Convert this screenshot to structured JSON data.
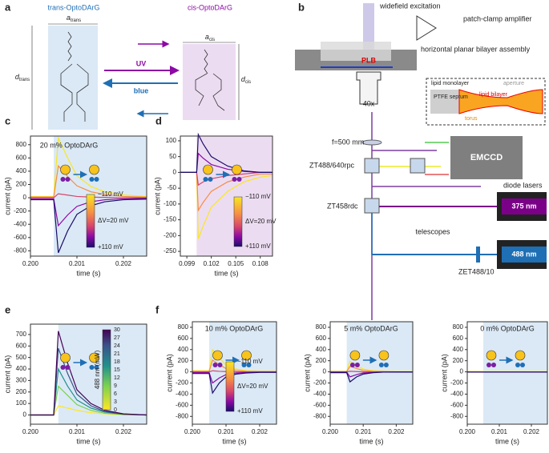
{
  "panel_a": {
    "label": "a",
    "trans_title": "trans-OptoDArG",
    "cis_title": "cis-OptoDArG",
    "a_trans": {
      "symbol": "a",
      "sub": "trans"
    },
    "a_cis": {
      "symbol": "a",
      "sub": "cis"
    },
    "d_trans": {
      "symbol": "d",
      "sub": "trans"
    },
    "d_cis": {
      "symbol": "d",
      "sub": "cis"
    },
    "uv": "UV",
    "blue": "blue"
  },
  "panel_b": {
    "label": "b",
    "widefield": "widefield excitation",
    "amplifier": "patch-clamp amplifier",
    "assembly": "horizontal planar bilayer assembly",
    "plb": "PLB",
    "objective": "40x",
    "monolayer": "lipid monolayer",
    "aperture": "aperture",
    "septum": "PTFE septum",
    "bilayer": "lipid bilayer",
    "torus": "torus",
    "lens": "f=500 mm",
    "camera": "EMCCD",
    "dichroic1": "ZT488/640rpc",
    "dichroic2": "ZT458rdc",
    "lasers": "diode lasers",
    "l375": "375 nm",
    "l488": "488 nm",
    "telescopes": "telescopes",
    "filter": "ZET488/10"
  },
  "chart_data": [
    {
      "type": "line",
      "panel": "c",
      "annotation": "20 m% OptoDArG",
      "xlabel": "time (s)",
      "ylabel": "current (pA)",
      "xlim": [
        0.2,
        0.2025
      ],
      "ylim": [
        -880,
        930
      ],
      "xticks": [
        {
          "value": 0.2,
          "label": "0.200"
        },
        {
          "value": 0.201,
          "label": "0.201"
        },
        {
          "value": 0.202,
          "label": "0.202"
        }
      ],
      "yticks": [
        -800,
        -600,
        -400,
        -200,
        0,
        200,
        400,
        600,
        800
      ],
      "shade_start": 0.2005,
      "shade_color": "#dbe9f6",
      "colorbar": {
        "labels": [
          "−110 mV",
          "ΔV=20 mV",
          "+110 mV"
        ]
      },
      "x": [
        0.2,
        0.2005,
        0.2006,
        0.2008,
        0.201,
        0.2013,
        0.2016,
        0.202,
        0.2025
      ],
      "series": [
        {
          "color": "#f9e721",
          "values": [
            20,
            20,
            900,
            600,
            330,
            170,
            90,
            40,
            20
          ]
        },
        {
          "color": "#f68d45",
          "values": [
            10,
            10,
            480,
            320,
            180,
            90,
            50,
            20,
            10
          ]
        },
        {
          "color": "#d6456c",
          "values": [
            0,
            0,
            60,
            40,
            20,
            10,
            5,
            0,
            0
          ]
        },
        {
          "color": "#8b0aa5",
          "values": [
            -15,
            -15,
            -420,
            -260,
            -130,
            -60,
            -30,
            -15,
            -10
          ]
        },
        {
          "color": "#1b0c6a",
          "values": [
            -30,
            -30,
            -830,
            -500,
            -250,
            -120,
            -60,
            -30,
            -20
          ]
        }
      ]
    },
    {
      "type": "line",
      "panel": "d",
      "xlabel": "time (s)",
      "ylabel": "current (pA)",
      "xlim": [
        0.0982,
        0.1095
      ],
      "ylim": [
        -265,
        115
      ],
      "xticks": [
        {
          "value": 0.099,
          "label": "0.099"
        },
        {
          "value": 0.102,
          "label": "0.102"
        },
        {
          "value": 0.105,
          "label": "0.105"
        },
        {
          "value": 0.108,
          "label": "0.108"
        }
      ],
      "yticks": [
        -250,
        -200,
        -150,
        -100,
        -50,
        0,
        50,
        100
      ],
      "shade_start": 0.1002,
      "shade_color": "#ecdcf2",
      "colorbar": {
        "labels": [
          "−110 mV",
          "ΔV=20 mV",
          "+110 mV"
        ]
      },
      "x": [
        0.0982,
        0.1002,
        0.1004,
        0.101,
        0.102,
        0.104,
        0.106,
        0.108,
        0.1095
      ],
      "series": [
        {
          "color": "#f9e721",
          "values": [
            0,
            0,
            -210,
            -170,
            -110,
            -60,
            -30,
            -15,
            -10
          ]
        },
        {
          "color": "#f68d45",
          "values": [
            0,
            0,
            -120,
            -95,
            -60,
            -30,
            -15,
            -5,
            -5
          ]
        },
        {
          "color": "#d6456c",
          "values": [
            0,
            0,
            -40,
            -30,
            -20,
            -10,
            -5,
            0,
            0
          ]
        },
        {
          "color": "#8b0aa5",
          "values": [
            0,
            0,
            60,
            45,
            25,
            10,
            3,
            0,
            0
          ]
        },
        {
          "color": "#1b0c6a",
          "values": [
            0,
            0,
            120,
            90,
            50,
            20,
            5,
            0,
            0
          ]
        }
      ]
    },
    {
      "type": "line",
      "panel": "e",
      "xlabel": "time (s)",
      "ylabel": "current (pA)",
      "xlim": [
        0.2,
        0.2025
      ],
      "ylim": [
        -80,
        790
      ],
      "xticks": [
        {
          "value": 0.2,
          "label": "0.200"
        },
        {
          "value": 0.201,
          "label": "0.201"
        },
        {
          "value": 0.202,
          "label": "0.202"
        }
      ],
      "yticks": [
        0,
        100,
        200,
        300,
        400,
        500,
        600,
        700
      ],
      "shade_start": 0.2006,
      "shade_color": "#dbe9f6",
      "colorbar": {
        "label": "488 nm (mW)",
        "lim": [
          0,
          30
        ],
        "ticks": [
          0,
          3,
          6,
          9,
          12,
          15,
          18,
          21,
          24,
          27,
          30
        ]
      },
      "x": [
        0.2,
        0.2005,
        0.2006,
        0.2008,
        0.201,
        0.2013,
        0.2016,
        0.202,
        0.2025
      ],
      "series": [
        {
          "color": "#fde725",
          "values": [
            0,
            0,
            80,
            60,
            40,
            20,
            10,
            0,
            0
          ]
        },
        {
          "color": "#7ad151",
          "values": [
            0,
            0,
            250,
            170,
            90,
            40,
            15,
            5,
            0
          ]
        },
        {
          "color": "#21918c",
          "values": [
            0,
            0,
            400,
            250,
            130,
            60,
            25,
            5,
            0
          ]
        },
        {
          "color": "#3b528b",
          "values": [
            0,
            0,
            580,
            360,
            180,
            80,
            30,
            8,
            0
          ]
        },
        {
          "color": "#440154",
          "values": [
            0,
            0,
            730,
            450,
            220,
            100,
            40,
            10,
            0
          ]
        }
      ]
    },
    {
      "type": "line",
      "panel": "f",
      "annotation": "10 m% OptoDArG",
      "xlabel": "time (s)",
      "ylabel": "current (pA)",
      "xlim": [
        0.2,
        0.2025
      ],
      "ylim": [
        -940,
        900
      ],
      "xticks": [
        {
          "value": 0.2,
          "label": "0.200"
        },
        {
          "value": 0.201,
          "label": "0.201"
        },
        {
          "value": 0.202,
          "label": "0.202"
        }
      ],
      "yticks": [
        -800,
        -600,
        -400,
        -200,
        0,
        200,
        400,
        600,
        800
      ],
      "shade_start": 0.2005,
      "shade_color": "#dbe9f6",
      "colorbar": {
        "labels": [
          "−110 mV",
          "ΔV=20 mV",
          "+110 mV"
        ]
      },
      "x": [
        0.2,
        0.2005,
        0.2006,
        0.2008,
        0.201,
        0.2013,
        0.2016,
        0.202,
        0.2025
      ],
      "series": [
        {
          "color": "#f9e721",
          "values": [
            20,
            20,
            400,
            250,
            120,
            50,
            20,
            10,
            10
          ]
        },
        {
          "color": "#f68d45",
          "values": [
            10,
            10,
            210,
            130,
            60,
            25,
            10,
            5,
            5
          ]
        },
        {
          "color": "#d6456c",
          "values": [
            0,
            0,
            20,
            10,
            5,
            0,
            0,
            0,
            0
          ]
        },
        {
          "color": "#8b0aa5",
          "values": [
            -15,
            -15,
            -200,
            -110,
            -50,
            -20,
            -10,
            -5,
            -5
          ]
        },
        {
          "color": "#1b0c6a",
          "values": [
            -30,
            -30,
            -380,
            -200,
            -90,
            -40,
            -20,
            -10,
            -10
          ]
        }
      ]
    },
    {
      "type": "line",
      "annotation": "5 m% OptoDArG",
      "xlabel": "time (s)",
      "ylabel": "current (pA)",
      "xlim": [
        0.2,
        0.2025
      ],
      "ylim": [
        -940,
        900
      ],
      "xticks": [
        {
          "value": 0.2,
          "label": "0.200"
        },
        {
          "value": 0.201,
          "label": "0.201"
        },
        {
          "value": 0.202,
          "label": "0.202"
        }
      ],
      "yticks": [
        -800,
        -600,
        -400,
        -200,
        0,
        200,
        400,
        600,
        800
      ],
      "shade_start": 0.2005,
      "shade_color": "#dbe9f6",
      "x": [
        0.2,
        0.2005,
        0.2006,
        0.2008,
        0.201,
        0.2013,
        0.2016,
        0.202,
        0.2025
      ],
      "series": [
        {
          "color": "#f9e721",
          "values": [
            10,
            10,
            190,
            110,
            50,
            20,
            10,
            5,
            5
          ]
        },
        {
          "color": "#f68d45",
          "values": [
            5,
            5,
            100,
            60,
            25,
            10,
            5,
            0,
            0
          ]
        },
        {
          "color": "#d6456c",
          "values": [
            0,
            0,
            10,
            5,
            0,
            0,
            0,
            0,
            0
          ]
        },
        {
          "color": "#8b0aa5",
          "values": [
            -5,
            -5,
            -90,
            -50,
            -20,
            -10,
            -5,
            0,
            0
          ]
        },
        {
          "color": "#1b0c6a",
          "values": [
            -15,
            -15,
            -180,
            -90,
            -40,
            -15,
            -5,
            -5,
            -5
          ]
        }
      ]
    },
    {
      "type": "line",
      "annotation": "0 m% OptoDArG",
      "xlabel": "time (s)",
      "ylabel": "current (pA)",
      "xlim": [
        0.2,
        0.2025
      ],
      "ylim": [
        -940,
        900
      ],
      "xticks": [
        {
          "value": 0.2,
          "label": "0.200"
        },
        {
          "value": 0.201,
          "label": "0.201"
        },
        {
          "value": 0.202,
          "label": "0.202"
        }
      ],
      "yticks": [
        -800,
        -600,
        -400,
        -200,
        0,
        200,
        400,
        600,
        800
      ],
      "shade_start": 0.2005,
      "shade_color": "#dbe9f6",
      "x": [
        0.2,
        0.2005,
        0.2006,
        0.2008,
        0.201,
        0.2013,
        0.2016,
        0.202,
        0.2025
      ],
      "series": [
        {
          "color": "#f9e721",
          "values": [
            5,
            5,
            5,
            5,
            5,
            5,
            5,
            5,
            5
          ]
        },
        {
          "color": "#d6456c",
          "values": [
            0,
            0,
            0,
            0,
            0,
            0,
            0,
            0,
            0
          ]
        },
        {
          "color": "#1b0c6a",
          "values": [
            -5,
            -5,
            -5,
            -5,
            -5,
            -5,
            -5,
            -5,
            -5
          ]
        }
      ]
    }
  ]
}
